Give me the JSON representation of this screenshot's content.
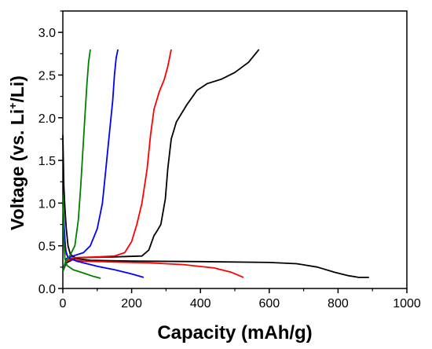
{
  "chart_data": {
    "type": "line",
    "xlabel": "Capacity (mAh/g)",
    "ylabel": {
      "prefix": "Voltage (vs. Li",
      "sup": "+",
      "suffix": "/Li)"
    },
    "xlim": [
      0,
      1000
    ],
    "ylim": [
      0,
      3.25
    ],
    "xticks": [
      0,
      200,
      400,
      600,
      800,
      1000
    ],
    "yticks": [
      0.0,
      0.5,
      1.0,
      1.5,
      2.0,
      2.5,
      3.0
    ],
    "xtick_labels": [
      "0",
      "200",
      "400",
      "600",
      "800",
      "1000"
    ],
    "ytick_labels": [
      "0.0",
      "0.5",
      "1.0",
      "1.5",
      "2.0",
      "2.5",
      "3.0"
    ],
    "grid": false,
    "legend": "none",
    "series": [
      {
        "color": "#000000",
        "discharge": [
          [
            0,
            1.8
          ],
          [
            3,
            1.2
          ],
          [
            6,
            0.95
          ],
          [
            10,
            0.7
          ],
          [
            15,
            0.5
          ],
          [
            22,
            0.4
          ],
          [
            40,
            0.35
          ],
          [
            80,
            0.33
          ],
          [
            200,
            0.32
          ],
          [
            400,
            0.315
          ],
          [
            600,
            0.305
          ],
          [
            680,
            0.29
          ],
          [
            740,
            0.25
          ],
          [
            790,
            0.19
          ],
          [
            830,
            0.15
          ],
          [
            860,
            0.13
          ],
          [
            890,
            0.13
          ]
        ],
        "charge": [
          [
            0,
            0.2
          ],
          [
            10,
            0.3
          ],
          [
            40,
            0.36
          ],
          [
            150,
            0.37
          ],
          [
            230,
            0.38
          ],
          [
            250,
            0.45
          ],
          [
            265,
            0.62
          ],
          [
            275,
            0.68
          ],
          [
            285,
            0.75
          ],
          [
            298,
            1.05
          ],
          [
            305,
            1.4
          ],
          [
            315,
            1.75
          ],
          [
            330,
            1.95
          ],
          [
            360,
            2.15
          ],
          [
            390,
            2.32
          ],
          [
            420,
            2.4
          ],
          [
            460,
            2.45
          ],
          [
            500,
            2.53
          ],
          [
            540,
            2.65
          ],
          [
            570,
            2.8
          ]
        ]
      },
      {
        "color": "#ff0000",
        "discharge": [
          [
            0,
            1.0
          ],
          [
            5,
            0.6
          ],
          [
            10,
            0.4
          ],
          [
            20,
            0.34
          ],
          [
            60,
            0.32
          ],
          [
            150,
            0.31
          ],
          [
            250,
            0.3
          ],
          [
            350,
            0.28
          ],
          [
            440,
            0.24
          ],
          [
            490,
            0.19
          ],
          [
            525,
            0.13
          ]
        ],
        "charge": [
          [
            0,
            0.2
          ],
          [
            10,
            0.32
          ],
          [
            30,
            0.36
          ],
          [
            100,
            0.37
          ],
          [
            150,
            0.38
          ],
          [
            180,
            0.42
          ],
          [
            200,
            0.55
          ],
          [
            215,
            0.75
          ],
          [
            230,
            1.0
          ],
          [
            245,
            1.4
          ],
          [
            255,
            1.8
          ],
          [
            265,
            2.1
          ],
          [
            280,
            2.3
          ],
          [
            295,
            2.45
          ],
          [
            305,
            2.6
          ],
          [
            315,
            2.8
          ]
        ]
      },
      {
        "color": "#0000ff",
        "discharge": [
          [
            0,
            1.1
          ],
          [
            4,
            0.7
          ],
          [
            8,
            0.45
          ],
          [
            15,
            0.36
          ],
          [
            40,
            0.32
          ],
          [
            100,
            0.26
          ],
          [
            150,
            0.22
          ],
          [
            200,
            0.17
          ],
          [
            235,
            0.13
          ]
        ],
        "charge": [
          [
            0,
            0.2
          ],
          [
            10,
            0.35
          ],
          [
            30,
            0.38
          ],
          [
            60,
            0.42
          ],
          [
            80,
            0.5
          ],
          [
            100,
            0.7
          ],
          [
            115,
            1.0
          ],
          [
            125,
            1.4
          ],
          [
            135,
            1.8
          ],
          [
            145,
            2.2
          ],
          [
            150,
            2.5
          ],
          [
            155,
            2.7
          ],
          [
            160,
            2.8
          ]
        ]
      },
      {
        "color": "#008000",
        "discharge": [
          [
            0,
            1.1
          ],
          [
            3,
            0.6
          ],
          [
            6,
            0.35
          ],
          [
            12,
            0.27
          ],
          [
            30,
            0.22
          ],
          [
            60,
            0.18
          ],
          [
            90,
            0.14
          ],
          [
            110,
            0.12
          ]
        ],
        "charge": [
          [
            0,
            0.2
          ],
          [
            8,
            0.32
          ],
          [
            20,
            0.38
          ],
          [
            35,
            0.5
          ],
          [
            45,
            0.8
          ],
          [
            52,
            1.2
          ],
          [
            58,
            1.6
          ],
          [
            64,
            2.0
          ],
          [
            70,
            2.4
          ],
          [
            75,
            2.65
          ],
          [
            80,
            2.8
          ]
        ]
      }
    ]
  }
}
